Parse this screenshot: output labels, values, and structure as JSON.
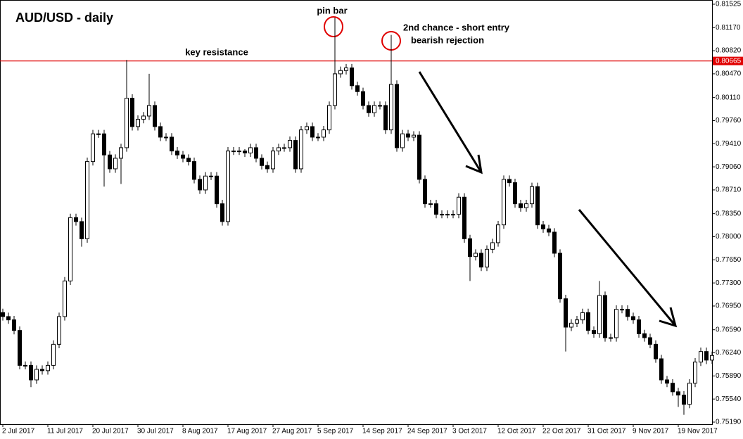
{
  "chart_data": {
    "type": "candlestick",
    "title": "AUD/USD - daily",
    "categories": [
      "2 Jul 2017",
      null,
      null,
      null,
      null,
      null,
      null,
      null,
      "11 Jul 2017",
      null,
      null,
      null,
      null,
      null,
      null,
      null,
      "20 Jul 2017",
      null,
      null,
      null,
      null,
      null,
      null,
      null,
      "30 Jul 2017",
      null,
      null,
      null,
      null,
      null,
      null,
      null,
      "8 Aug 2017",
      null,
      null,
      null,
      null,
      null,
      null,
      null,
      "17 Aug 2017",
      null,
      null,
      null,
      null,
      null,
      null,
      null,
      "27 Aug 2017",
      null,
      null,
      null,
      null,
      null,
      null,
      null,
      "5 Sep 2017",
      null,
      null,
      null,
      null,
      null,
      null,
      null,
      "14 Sep 2017",
      null,
      null,
      null,
      null,
      null,
      null,
      null,
      "24 Sep 2017",
      null,
      null,
      null,
      null,
      null,
      null,
      null,
      "3 Oct 2017",
      null,
      null,
      null,
      null,
      null,
      null,
      null,
      "12 Oct 2017",
      null,
      null,
      null,
      null,
      null,
      null,
      null,
      "22 Oct 2017",
      null,
      null,
      null,
      null,
      null,
      null,
      null,
      "31 Oct 2017",
      null,
      null,
      null,
      null,
      null,
      null,
      null,
      "9 Nov 2017",
      null,
      null,
      null,
      null,
      null,
      null,
      null,
      "19 Nov 2017",
      null,
      null,
      null,
      null,
      null,
      null
    ],
    "open": [
      0.7685,
      0.7679,
      0.7674,
      0.7658,
      0.7605,
      0.7605,
      0.7583,
      0.7599,
      0.7597,
      0.7605,
      0.7637,
      0.7679,
      0.7733,
      0.7829,
      0.7823,
      0.7797,
      0.7914,
      0.7956,
      0.7956,
      0.7924,
      0.7903,
      0.7919,
      0.7935,
      0.801,
      0.7967,
      0.7978,
      0.7983,
      0.7999,
      0.7967,
      0.7951,
      0.7951,
      0.793,
      0.7924,
      0.7919,
      0.7914,
      0.7887,
      0.7871,
      0.7892,
      0.7892,
      0.785,
      0.7823,
      0.793,
      0.793,
      0.793,
      0.7927,
      0.7935,
      0.7919,
      0.7908,
      0.7903,
      0.793,
      0.7935,
      0.7935,
      0.7946,
      0.7903,
      0.7962,
      0.7967,
      0.7951,
      0.7951,
      0.7962,
      0.7999,
      0.8047,
      0.8052,
      0.8056,
      0.8029,
      0.802,
      0.7999,
      0.7988,
      0.7999,
      0.7999,
      0.7962,
      0.8031,
      0.7935,
      0.7956,
      0.7951,
      0.7954,
      0.7887,
      0.785,
      0.785,
      0.7834,
      0.7834,
      0.7834,
      0.7834,
      0.786,
      0.7797,
      0.777,
      0.7775,
      0.7754,
      0.7781,
      0.7791,
      0.7818,
      0.7887,
      0.7882,
      0.785,
      0.7844,
      0.785,
      0.7876,
      0.7818,
      0.7812,
      0.7807,
      0.7775,
      0.7706,
      0.7663,
      0.7669,
      0.7674,
      0.7685,
      0.7658,
      0.7653,
      0.7711,
      0.7647,
      0.7647,
      0.769,
      0.769,
      0.7679,
      0.7674,
      0.7653,
      0.7647,
      0.7637,
      0.7615,
      0.7583,
      0.7578,
      0.7565,
      0.756,
      0.7546,
      0.7578,
      0.761,
      0.7626,
      0.7613
    ],
    "high": [
      0.7691,
      0.7685,
      0.768,
      0.7664,
      0.7611,
      0.7611,
      0.7605,
      0.7605,
      0.7611,
      0.7643,
      0.7685,
      0.7739,
      0.7835,
      0.7835,
      0.7829,
      0.792,
      0.7962,
      0.7962,
      0.7962,
      0.793,
      0.7925,
      0.7941,
      0.8068,
      0.8016,
      0.7984,
      0.7989,
      0.8047,
      0.8005,
      0.7973,
      0.7957,
      0.7957,
      0.7936,
      0.793,
      0.7925,
      0.792,
      0.7893,
      0.7898,
      0.7898,
      0.7898,
      0.7856,
      0.7936,
      0.7936,
      0.7936,
      0.7933,
      0.7941,
      0.7941,
      0.7925,
      0.7914,
      0.7936,
      0.7941,
      0.7941,
      0.7952,
      0.7952,
      0.7968,
      0.7973,
      0.7973,
      0.7957,
      0.7968,
      0.8005,
      0.8132,
      0.8058,
      0.8062,
      0.8062,
      0.8035,
      0.8026,
      0.8005,
      0.8005,
      0.8005,
      0.8005,
      0.8106,
      0.8037,
      0.7962,
      0.7962,
      0.796,
      0.796,
      0.7893,
      0.7856,
      0.7856,
      0.784,
      0.784,
      0.784,
      0.7866,
      0.7866,
      0.7803,
      0.7781,
      0.7781,
      0.7787,
      0.7797,
      0.7824,
      0.7893,
      0.7893,
      0.7888,
      0.7856,
      0.7856,
      0.7882,
      0.7882,
      0.7824,
      0.7818,
      0.7813,
      0.7781,
      0.7712,
      0.7675,
      0.768,
      0.7691,
      0.7691,
      0.7664,
      0.7733,
      0.7717,
      0.7653,
      0.7696,
      0.7696,
      0.7696,
      0.7685,
      0.768,
      0.7659,
      0.7653,
      0.7643,
      0.7621,
      0.7589,
      0.7584,
      0.7571,
      0.7566,
      0.7584,
      0.7616,
      0.7632,
      0.7632,
      0.7626
    ],
    "low": [
      0.7673,
      0.7668,
      0.7652,
      0.7599,
      0.7599,
      0.7572,
      0.7577,
      0.7591,
      0.7591,
      0.7599,
      0.7631,
      0.7673,
      0.7727,
      0.7817,
      0.7785,
      0.7791,
      0.7908,
      0.795,
      0.7876,
      0.7897,
      0.7897,
      0.788,
      0.7929,
      0.7961,
      0.7961,
      0.7972,
      0.7977,
      0.7961,
      0.7945,
      0.7945,
      0.7924,
      0.7918,
      0.7913,
      0.7908,
      0.7881,
      0.7865,
      0.7865,
      0.7886,
      0.7844,
      0.7817,
      0.7817,
      0.7924,
      0.7924,
      0.7921,
      0.7921,
      0.7913,
      0.7902,
      0.7897,
      0.7897,
      0.7924,
      0.7929,
      0.7929,
      0.7897,
      0.7897,
      0.7956,
      0.7945,
      0.7945,
      0.7945,
      0.7956,
      0.7993,
      0.8041,
      0.8046,
      0.8023,
      0.8014,
      0.7993,
      0.7982,
      0.7982,
      0.7993,
      0.7956,
      0.7956,
      0.7929,
      0.7929,
      0.7945,
      0.7945,
      0.7881,
      0.7844,
      0.7844,
      0.7828,
      0.7828,
      0.7828,
      0.7828,
      0.7828,
      0.7791,
      0.7733,
      0.7764,
      0.7748,
      0.7748,
      0.7775,
      0.7785,
      0.7812,
      0.7876,
      0.7844,
      0.7838,
      0.7838,
      0.7844,
      0.7812,
      0.7806,
      0.7801,
      0.7769,
      0.77,
      0.7626,
      0.7657,
      0.7663,
      0.7668,
      0.7652,
      0.7647,
      0.7647,
      0.7641,
      0.7641,
      0.7641,
      0.7684,
      0.7673,
      0.7668,
      0.7647,
      0.7641,
      0.7631,
      0.7609,
      0.7577,
      0.7572,
      0.7559,
      0.7542,
      0.753,
      0.754,
      0.7572,
      0.7604,
      0.7607,
      0.7607
    ],
    "close": [
      0.7679,
      0.7674,
      0.7658,
      0.7605,
      0.7605,
      0.7583,
      0.7599,
      0.7597,
      0.7605,
      0.7637,
      0.7679,
      0.7733,
      0.7829,
      0.7823,
      0.7797,
      0.7914,
      0.7956,
      0.7956,
      0.7924,
      0.7903,
      0.7919,
      0.7935,
      0.801,
      0.7967,
      0.7978,
      0.7983,
      0.7999,
      0.7967,
      0.7951,
      0.7951,
      0.793,
      0.7924,
      0.7919,
      0.7914,
      0.7887,
      0.7871,
      0.7892,
      0.7892,
      0.785,
      0.7823,
      0.793,
      0.793,
      0.793,
      0.7927,
      0.7935,
      0.7919,
      0.7908,
      0.7903,
      0.793,
      0.7935,
      0.7935,
      0.7946,
      0.7903,
      0.7962,
      0.7967,
      0.7951,
      0.7951,
      0.7962,
      0.7999,
      0.8047,
      0.8052,
      0.8056,
      0.8029,
      0.802,
      0.7999,
      0.7988,
      0.7999,
      0.7999,
      0.7962,
      0.8031,
      0.7935,
      0.7956,
      0.7951,
      0.7954,
      0.7887,
      0.785,
      0.785,
      0.7834,
      0.7834,
      0.7834,
      0.7834,
      0.786,
      0.7797,
      0.777,
      0.7775,
      0.7754,
      0.7781,
      0.7791,
      0.7818,
      0.7887,
      0.7882,
      0.785,
      0.7844,
      0.785,
      0.7876,
      0.7818,
      0.7812,
      0.7807,
      0.7775,
      0.7706,
      0.7663,
      0.7669,
      0.7674,
      0.7685,
      0.7658,
      0.7653,
      0.7711,
      0.7647,
      0.7647,
      0.769,
      0.769,
      0.7679,
      0.7674,
      0.7653,
      0.7647,
      0.7637,
      0.7615,
      0.7583,
      0.7578,
      0.7565,
      0.756,
      0.7546,
      0.7578,
      0.761,
      0.7626,
      0.7613,
      0.762
    ],
    "up_color": "#ffffff",
    "down_color": "#000000",
    "ylim": [
      0.75158,
      0.81589
    ],
    "yticks": [
      0.81525,
      {
        "value": 0.8117,
        "label": "0.81170"
      },
      {
        "value": 0.8082,
        "label": "0.80820"
      },
      {
        "value": 0.8047,
        "label": "0.80470"
      },
      {
        "value": 0.8011,
        "label": "0.80110"
      },
      {
        "value": 0.7976,
        "label": "0.79760"
      },
      {
        "value": 0.7941,
        "label": "0.79410"
      },
      {
        "value": 0.7906,
        "label": "0.79060"
      },
      {
        "value": 0.7871,
        "label": "0.78710"
      },
      {
        "value": 0.7835,
        "label": "0.78350"
      },
      {
        "value": 0.78,
        "label": "0.78000"
      },
      {
        "value": 0.7765,
        "label": "0.77650"
      },
      {
        "value": 0.773,
        "label": "0.77300"
      },
      {
        "value": 0.7695,
        "label": "0.76950"
      },
      {
        "value": 0.7659,
        "label": "0.76590"
      },
      {
        "value": 0.7624,
        "label": "0.76240"
      },
      {
        "value": 0.7589,
        "label": "0.75890"
      },
      {
        "value": 0.7554,
        "label": "0.75540"
      },
      {
        "value": 0.7519,
        "label": "0.75190"
      }
    ],
    "grid": false,
    "reference_line": {
      "value": 0.80665,
      "label": "0.80665",
      "color": "#e00000"
    },
    "annotations": {
      "pin_bar": "pin bar",
      "second_chance": "2nd chance - short entry",
      "rejection": "bearish rejection",
      "resistance": "key resistance"
    }
  }
}
